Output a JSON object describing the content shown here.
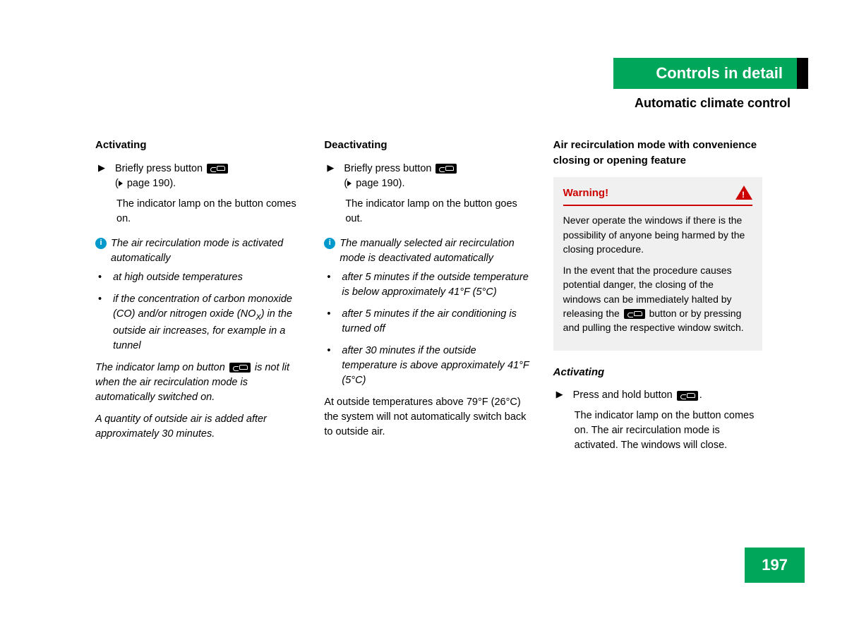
{
  "header": {
    "title": "Controls in detail",
    "subtitle": "Automatic climate control",
    "green_color": "#00a659",
    "page_number": "197"
  },
  "col1": {
    "heading": "Activating",
    "step_text": "Briefly press button ",
    "pageref": " page 190).",
    "result": "The indicator lamp on the button comes on.",
    "info_text": "The air recirculation mode is activated automatically",
    "bullets": [
      "at high outside temperatures",
      "if the concentration of carbon monoxide (CO) and/or nitrogen oxide (NO"
    ],
    "bullet2_tail": ") in the outside air increases, for example in a tunnel",
    "para1a": "The indicator lamp on button ",
    "para1b": " is not lit when the air recirculation mode is automatically switched on.",
    "para2": "A quantity of outside air is added after approximately 30 minutes."
  },
  "col2": {
    "heading": "Deactivating",
    "step_text": "Briefly press button ",
    "pageref": " page 190).",
    "result": "The indicator lamp on the button goes out.",
    "info_text": "The manually selected air recirculation mode is deactivated automatically",
    "bullets": [
      "after 5 minutes if the outside temperature is below approximately 41°F (5°C)",
      "after 5 minutes if the air conditioning is turned off",
      "after 30 minutes if the outside temperature is above approximately 41°F (5°C)"
    ],
    "para": "At outside temperatures above 79°F (26°C) the system will not automatically switch back to outside air."
  },
  "col3": {
    "heading": "Air recirculation mode with convenience closing or opening feature",
    "warning_title": "Warning!",
    "warning_p1": "Never operate the windows if there is the possibility of anyone being harmed by the closing procedure.",
    "warning_p2a": "In the event that the procedure causes potential danger, the closing of the windows can be immediately halted by releasing the ",
    "warning_p2b": " button or by pressing and pulling the respective window switch.",
    "sub_heading": "Activating",
    "step_text": "Press and hold button ",
    "result": "The indicator lamp on the button comes on. The air recirculation mode is activated. The windows will close."
  }
}
